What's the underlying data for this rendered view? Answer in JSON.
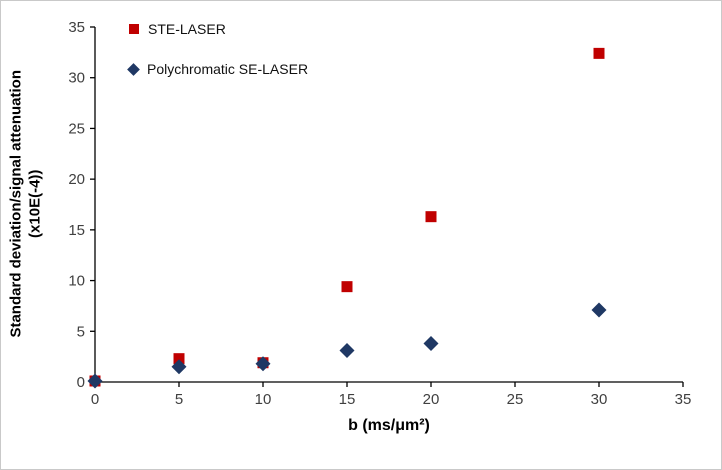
{
  "chart_data": {
    "type": "scatter",
    "title": "",
    "xlabel": "b (ms/μm²)",
    "ylabel": "Standard deviation/signal attenuation (x10E(-4))",
    "ylabel_lines": [
      "Standard deviation/signal attenuation",
      "(x10E(-4))"
    ],
    "xlim": [
      0,
      35
    ],
    "ylim": [
      0,
      35
    ],
    "xticks": [
      0,
      5,
      10,
      15,
      20,
      25,
      30,
      35
    ],
    "yticks": [
      0,
      5,
      10,
      15,
      20,
      25,
      30,
      35
    ],
    "grid": false,
    "legend_position": "top-left-inside",
    "axis_color": "#000000",
    "tick_label_color": "#404040",
    "series": [
      {
        "name": "STE-LASER",
        "marker": "square",
        "color": "#C00000",
        "points": [
          [
            0,
            0.1
          ],
          [
            5,
            2.3
          ],
          [
            10,
            1.9
          ],
          [
            15,
            9.4
          ],
          [
            20,
            16.3
          ],
          [
            30,
            32.4
          ]
        ]
      },
      {
        "name": "Polychromatic SE-LASER",
        "marker": "diamond",
        "color": "#1F3864",
        "points": [
          [
            0,
            0.1
          ],
          [
            5,
            1.5
          ],
          [
            10,
            1.8
          ],
          [
            15,
            3.1
          ],
          [
            20,
            3.8
          ],
          [
            30,
            7.1
          ]
        ]
      }
    ]
  }
}
